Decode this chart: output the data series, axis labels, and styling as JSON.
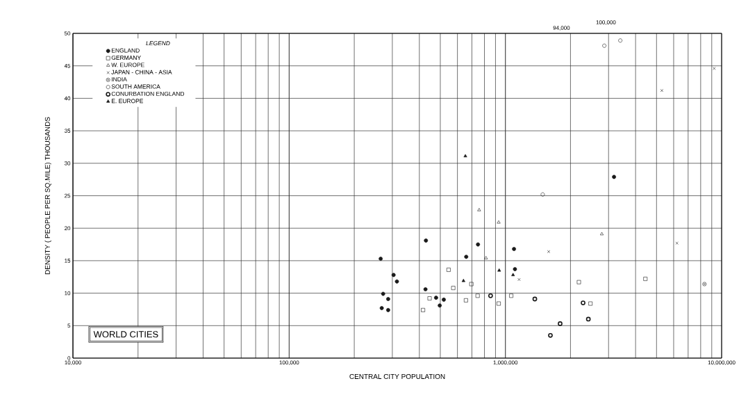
{
  "chart_data": {
    "type": "scatter",
    "title": "WORLD CITIES",
    "xlabel": "CENTRAL CITY POPULATION",
    "ylabel": "DENSITY ( PEOPLE PER SQ.MILE) THOUSANDS",
    "legend_title": "LEGEND",
    "log": "x",
    "xlim": [
      10000,
      10000000
    ],
    "ylim": [
      0,
      50
    ],
    "xticks": [
      {
        "value": 10000,
        "label": "10,000"
      },
      {
        "value": 100000,
        "label": "100,000"
      },
      {
        "value": 1000000,
        "label": "1,000,000"
      },
      {
        "value": 10000000,
        "label": "10,000,000"
      }
    ],
    "yticks": [
      0,
      5,
      10,
      15,
      20,
      25,
      30,
      35,
      40,
      45,
      50
    ],
    "grid": true,
    "legend": "top left",
    "series": [
      {
        "name": "ENGLAND",
        "color": "#1a1a1a",
        "marker": "circle",
        "x": [
          265000,
          429000,
          304000,
          315000,
          427000,
          272000,
          287000,
          268000,
          287000,
          478000,
          519000,
          497000,
          659000,
          747000,
          1096000,
          1107000,
          3180000
        ],
        "values": [
          15.3,
          18.1,
          12.8,
          11.8,
          10.6,
          9.9,
          9.1,
          7.7,
          7.4,
          9.3,
          9.0,
          8.1,
          15.6,
          17.5,
          16.8,
          13.7,
          27.9
        ]
      },
      {
        "name": "GERMANY",
        "color": "#1a1a1a",
        "marker": "square",
        "x": [
          546000,
          446000,
          416000,
          657000,
          696000,
          574000,
          744000,
          931000,
          1064000,
          2187000,
          2474000,
          4440000
        ],
        "values": [
          13.6,
          9.2,
          7.4,
          8.9,
          11.4,
          10.8,
          9.6,
          8.4,
          9.6,
          11.7,
          8.4,
          12.2
        ]
      },
      {
        "name": "W. EUROPE",
        "color": "#1a1a1a",
        "marker": "triangle",
        "x": [
          756000,
          931000,
          813000,
          2792000
        ],
        "values": [
          22.8,
          20.9,
          15.4,
          19.1
        ]
      },
      {
        "name": "JAPAN - CHINA - ASIA",
        "color": "#1a1a1a",
        "marker": "cross",
        "x": [
          1157000,
          1586000,
          6214000,
          5290000,
          9240000
        ],
        "values": [
          12.1,
          16.4,
          17.7,
          41.2,
          44.6
        ]
      },
      {
        "name": "INDIA",
        "color": "#1a1a1a",
        "marker": "cross",
        "x": [
          8330000
        ],
        "values": [
          11.4
        ]
      },
      {
        "name": "SOUTH AMERICA",
        "color": "#1a1a1a",
        "marker": "circle",
        "x": [
          1488000,
          2868000,
          3400000
        ],
        "values": [
          25.2,
          48.1,
          48.9
        ]
      },
      {
        "name": "CONURBATION ENGLAND",
        "color": "#1a1a1a",
        "marker": "circle",
        "x": [
          854000,
          1368000,
          2287000,
          2419000,
          1791000,
          1615000
        ],
        "values": [
          9.6,
          9.1,
          8.5,
          6.0,
          5.3,
          3.5
        ]
      },
      {
        "name": "E. EUROPE",
        "color": "#1a1a1a",
        "marker": "triangle",
        "x": [
          653000,
          640000,
          936000,
          1085000
        ],
        "values": [
          31.1,
          11.9,
          13.5,
          12.8
        ]
      }
    ],
    "annotations": [
      "94,000",
      "100,000"
    ]
  }
}
